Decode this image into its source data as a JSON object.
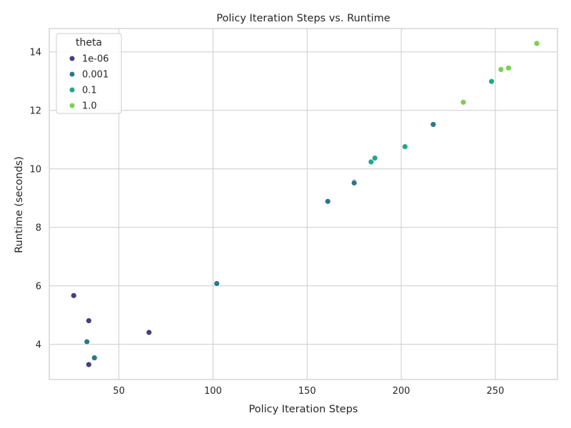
{
  "chart_data": {
    "type": "scatter",
    "title": "Policy Iteration Steps vs. Runtime",
    "xlabel": "Policy Iteration Steps",
    "ylabel": "Runtime (seconds)",
    "xlim": [
      13,
      283
    ],
    "ylim": [
      2.8,
      14.8
    ],
    "xticks": [
      50,
      100,
      150,
      200,
      250
    ],
    "yticks": [
      4,
      6,
      8,
      10,
      12,
      14
    ],
    "grid": true,
    "legend": {
      "title": "theta",
      "placement": "top-left"
    },
    "series": [
      {
        "name": "1e-06",
        "color": "#433e85",
        "points": [
          [
            26,
            5.67
          ],
          [
            34,
            4.81
          ],
          [
            34,
            3.31
          ],
          [
            66,
            4.41
          ],
          [
            175,
            9.55
          ]
        ]
      },
      {
        "name": "0.001",
        "color": "#2a788e",
        "points": [
          [
            33,
            4.09
          ],
          [
            37,
            3.54
          ],
          [
            102,
            6.08
          ],
          [
            161,
            8.89
          ],
          [
            175,
            9.52
          ],
          [
            217,
            11.52
          ]
        ]
      },
      {
        "name": "0.1",
        "color": "#22a884",
        "points": [
          [
            184,
            10.24
          ],
          [
            186,
            10.37
          ],
          [
            202,
            10.76
          ],
          [
            248,
            12.99
          ]
        ]
      },
      {
        "name": "1.0",
        "color": "#7ad151",
        "points": [
          [
            233,
            12.28
          ],
          [
            253,
            13.4
          ],
          [
            257,
            13.45
          ],
          [
            272,
            14.29
          ]
        ]
      }
    ]
  }
}
